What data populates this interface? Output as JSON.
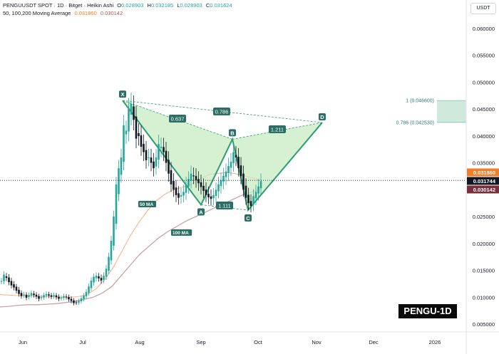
{
  "header": {
    "symbol_line": "PENGUUSDT SPOT · 1D · Bitget · Heikin Ashi",
    "o_label": "O",
    "o_value": "0.028903",
    "h_label": "H",
    "h_value": "0.032185",
    "l_label": "L",
    "l_value": "0.028903",
    "c_label": "C",
    "c_value": "0.031624",
    "ma_line": "50, 100,200 Moving Average",
    "ma_value_1": "0.031860",
    "ma_value_2": "0.030142"
  },
  "currency_button": "USDT",
  "watermark": "PENGU-1D",
  "colors": {
    "up": "#26a69a",
    "down": "#131722",
    "ma50": "#f5b58a",
    "ma100": "#c9a3a8",
    "pattern_fill": "#c8ebc3",
    "pattern_line": "#2e9d6f",
    "badge": "#2b6e63",
    "price_label_last": "#131722",
    "price_label_ma50": "#f57c28",
    "price_label_ma100": "#7a2e3a"
  },
  "chart_data": {
    "type": "candlestick",
    "y_ticks": [
      "0.060000",
      "0.055000",
      "0.050000",
      "0.045000",
      "0.040000",
      "0.035000",
      "0.030000",
      "0.025000",
      "0.020000",
      "0.015000",
      "0.010000",
      "0.005000"
    ],
    "y_tick_values": [
      0.06,
      0.055,
      0.05,
      0.045,
      0.04,
      0.035,
      0.03,
      0.025,
      0.02,
      0.015,
      0.01,
      0.005
    ],
    "ylim": [
      0.0025,
      0.0625
    ],
    "x_ticks": [
      "Jun",
      "Jul",
      "Aug",
      "Sep",
      "Oct",
      "Nov",
      "Dec",
      "2026"
    ],
    "price_labels": [
      {
        "text": "0.031860",
        "value": 0.03186,
        "kind": "ma50"
      },
      {
        "text": "0.031744",
        "value": 0.031744,
        "kind": "last"
      },
      {
        "text": "0.030142",
        "value": 0.030142,
        "kind": "ma100"
      }
    ],
    "close_series": [
      0.013,
      0.0142,
      0.0136,
      0.0128,
      0.0122,
      0.0118,
      0.0112,
      0.0106,
      0.0102,
      0.0105,
      0.0099,
      0.0104,
      0.0108,
      0.0104,
      0.0101,
      0.0097,
      0.01,
      0.0104,
      0.0106,
      0.0103,
      0.0101,
      0.0104,
      0.01,
      0.0097,
      0.0099,
      0.0102,
      0.01,
      0.0096,
      0.0093,
      0.0089,
      0.009,
      0.0093,
      0.0098,
      0.0103,
      0.011,
      0.012,
      0.0131,
      0.0138,
      0.014,
      0.0135,
      0.0131,
      0.014,
      0.0153,
      0.0175,
      0.0205,
      0.025,
      0.031,
      0.034,
      0.036,
      0.042,
      0.041,
      0.045,
      0.046,
      0.043,
      0.0395,
      0.04,
      0.038,
      0.037,
      0.0355,
      0.036,
      0.035,
      0.034,
      0.036,
      0.0385,
      0.038,
      0.037,
      0.035,
      0.033,
      0.031,
      0.03,
      0.029,
      0.0285,
      0.029,
      0.0296,
      0.031,
      0.032,
      0.033,
      0.0325,
      0.0318,
      0.0312,
      0.0305,
      0.0298,
      0.029,
      0.0286,
      0.0283,
      0.029,
      0.03,
      0.031,
      0.0318,
      0.0326,
      0.0334,
      0.0344,
      0.0352,
      0.037,
      0.036,
      0.034,
      0.0325,
      0.03,
      0.0285,
      0.0275,
      0.027,
      0.0288,
      0.0296,
      0.0306,
      0.0316
    ],
    "ma50_series": [
      0.0105,
      0.0104,
      0.0103,
      0.0103,
      0.0102,
      0.0101,
      0.0101,
      0.01,
      0.01,
      0.0101,
      0.0105,
      0.0115,
      0.0132,
      0.0155,
      0.0185,
      0.0215,
      0.024,
      0.0262,
      0.028,
      0.0292,
      0.03,
      0.0305,
      0.031,
      0.032,
      0.0328,
      0.033,
      0.0332,
      0.033,
      0.0326,
      0.0322,
      0.0319
    ],
    "ma100_series": [
      0.0082,
      0.0083,
      0.0085,
      0.0086,
      0.0086,
      0.0087,
      0.0088,
      0.009,
      0.0092,
      0.0096,
      0.01,
      0.0108,
      0.012,
      0.014,
      0.016,
      0.018,
      0.0195,
      0.021,
      0.0222,
      0.0232,
      0.0242,
      0.025,
      0.0258,
      0.0266,
      0.0274,
      0.0282,
      0.029,
      0.0296,
      0.0301
    ],
    "pattern": {
      "points": [
        {
          "label": "X",
          "value": 0.0466
        },
        {
          "label": "A",
          "value": 0.0272
        },
        {
          "label": "B",
          "value": 0.0394
        },
        {
          "label": "C",
          "value": 0.0262
        },
        {
          "label": "D",
          "value": 0.0425
        }
      ],
      "ratios": [
        {
          "label": "0.637"
        },
        {
          "label": "0.786"
        },
        {
          "label": "1.111"
        },
        {
          "label": "1.211"
        }
      ]
    },
    "fib_levels": [
      {
        "label": "1 (0.046600)",
        "value": 0.0466
      },
      {
        "label": "0.786 (0.042530)",
        "value": 0.04253
      }
    ],
    "ma_tags": [
      {
        "label": "50 MA"
      },
      {
        "label": "100 MA"
      }
    ]
  }
}
